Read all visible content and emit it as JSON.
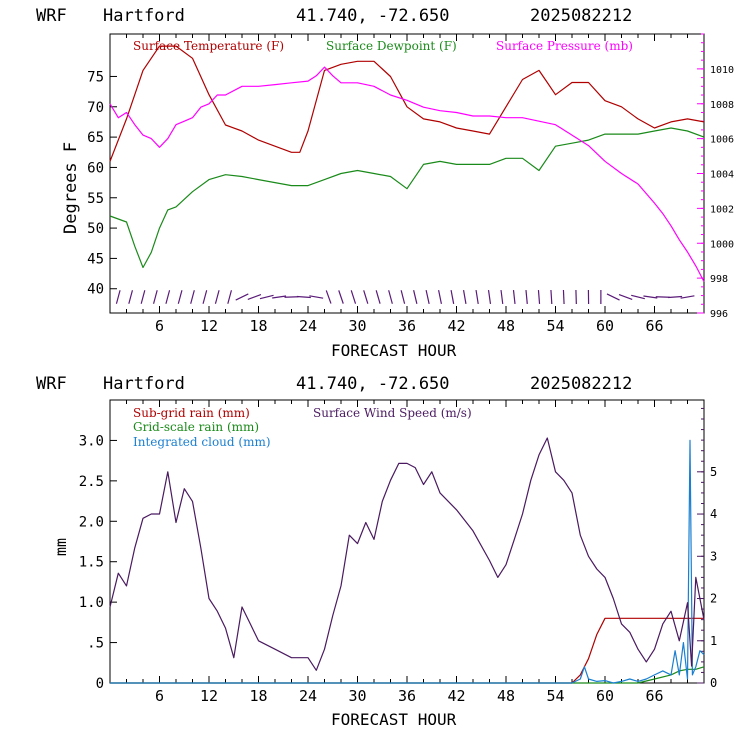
{
  "colors": {
    "frame": "#000000",
    "temperature": "#b00000",
    "dewpoint": "#1a8a1a",
    "pressure": "#ff00ff",
    "wind_barbs": "#5a1a78",
    "subgrid_rain": "#b00000",
    "gridscale_rain": "#1a8a1a",
    "cloud": "#1a7fd0",
    "wind_speed": "#4a1a60"
  },
  "chart_data": [
    {
      "type": "line",
      "title_row": {
        "model": "WRF",
        "location": "Hartford",
        "coords": "41.740, -72.650",
        "run": "2025082212"
      },
      "xlabel": "FORECAST HOUR",
      "ylabel": "Degrees F",
      "xlim": [
        0,
        72
      ],
      "ylim": [
        36,
        82
      ],
      "y2lim": [
        996,
        1012
      ],
      "x_ticks": [
        6,
        12,
        18,
        24,
        30,
        36,
        42,
        48,
        54,
        60,
        66
      ],
      "x_tick_labels": [
        "6",
        "12",
        "18",
        "24",
        "30",
        "36",
        "42",
        "48",
        "54",
        "60",
        "66"
      ],
      "y_ticks": [
        40,
        45,
        50,
        55,
        60,
        65,
        70,
        75
      ],
      "y_tick_labels": [
        "40",
        "45",
        "50",
        "55",
        "60",
        "65",
        "70",
        "75"
      ],
      "y2_ticks": [
        996,
        998,
        1000,
        1002,
        1004,
        1006,
        1008,
        1010
      ],
      "y2_tick_labels": [
        "996",
        "998",
        "1000",
        "1002",
        "1004",
        "1006",
        "1008",
        "1010"
      ],
      "legend_placement": "top",
      "series": [
        {
          "name": "Surface Temperature (F)",
          "axis": "left",
          "x": [
            0,
            2,
            4,
            6,
            8,
            10,
            12,
            14,
            16,
            18,
            20,
            22,
            23,
            24,
            26,
            28,
            30,
            32,
            34,
            36,
            38,
            40,
            42,
            44,
            46,
            48,
            50,
            52,
            53,
            54,
            56,
            58,
            60,
            62,
            64,
            66,
            68,
            70,
            72
          ],
          "y": [
            61,
            68,
            76,
            80,
            80,
            78,
            72,
            67,
            66,
            64.5,
            63.5,
            62.5,
            62.5,
            66,
            76,
            77,
            77.5,
            77.5,
            75,
            70,
            68,
            67.5,
            66.5,
            66,
            65.5,
            70,
            74.5,
            76,
            74,
            72,
            74,
            74,
            71,
            70,
            68,
            66.5,
            67.5,
            68,
            67.5
          ]
        },
        {
          "name": "Surface Dewpoint (F)",
          "axis": "left",
          "x": [
            0,
            2,
            3,
            4,
            5,
            6,
            7,
            8,
            10,
            12,
            14,
            16,
            18,
            20,
            22,
            24,
            26,
            28,
            30,
            32,
            34,
            36,
            38,
            40,
            42,
            44,
            46,
            48,
            50,
            52,
            54,
            56,
            58,
            60,
            62,
            64,
            66,
            68,
            70,
            72
          ],
          "y": [
            52,
            51,
            47,
            43.5,
            46,
            50,
            53,
            53.5,
            56,
            58,
            58.8,
            58.5,
            58,
            57.5,
            57,
            57,
            58,
            59,
            59.5,
            59,
            58.5,
            56.5,
            60.5,
            61,
            60.5,
            60.5,
            60.5,
            61.5,
            61.5,
            59.5,
            63.5,
            64,
            64.5,
            65.5,
            65.5,
            65.5,
            66,
            66.5,
            66,
            65
          ]
        },
        {
          "name": "Surface Pressure (mb)",
          "axis": "right",
          "x": [
            0,
            1,
            2,
            3,
            4,
            5,
            6,
            7,
            8,
            9,
            10,
            11,
            12,
            13,
            14,
            16,
            18,
            20,
            22,
            24,
            25,
            26,
            27,
            28,
            30,
            32,
            34,
            36,
            38,
            40,
            42,
            44,
            46,
            48,
            50,
            52,
            54,
            56,
            58,
            60,
            62,
            64,
            66,
            67,
            68,
            69,
            70,
            71,
            72
          ],
          "y": [
            1008,
            1007.2,
            1007.5,
            1006.8,
            1006.2,
            1006,
            1005.5,
            1006,
            1006.8,
            1007,
            1007.2,
            1007.8,
            1008,
            1008.5,
            1008.5,
            1009,
            1009,
            1009.1,
            1009.2,
            1009.3,
            1009.6,
            1010.1,
            1009.6,
            1009.2,
            1009.2,
            1009,
            1008.5,
            1008.2,
            1007.8,
            1007.6,
            1007.5,
            1007.3,
            1007.3,
            1007.2,
            1007.2,
            1007,
            1006.8,
            1006.2,
            1005.6,
            1004.7,
            1004,
            1003.4,
            1002.3,
            1001.7,
            1001,
            1000.2,
            999.5,
            998.7,
            997.8
          ]
        }
      ],
      "wind_barbs_note": "wind barbs drawn along bottom of panel"
    },
    {
      "type": "line",
      "title_row": {
        "model": "WRF",
        "location": "Hartford",
        "coords": "41.740, -72.650",
        "run": "2025082212"
      },
      "xlabel": "FORECAST HOUR",
      "ylabel": "mm",
      "xlim": [
        0,
        72
      ],
      "ylim": [
        0,
        3.5
      ],
      "y2lim": [
        0,
        6.7
      ],
      "x_ticks": [
        6,
        12,
        18,
        24,
        30,
        36,
        42,
        48,
        54,
        60,
        66
      ],
      "x_tick_labels": [
        "6",
        "12",
        "18",
        "24",
        "30",
        "36",
        "42",
        "48",
        "54",
        "60",
        "66"
      ],
      "y_ticks": [
        0,
        0.5,
        1.0,
        1.5,
        2.0,
        2.5,
        3.0
      ],
      "y_tick_labels": [
        "0",
        ".5",
        "1.0",
        "1.5",
        "2.0",
        "2.5",
        "3.0"
      ],
      "y2_ticks": [
        0,
        1,
        2,
        3,
        4,
        5
      ],
      "y2_tick_labels": [
        "0",
        "1",
        "2",
        "3",
        "4",
        "5"
      ],
      "legend_placement": "top-left",
      "series": [
        {
          "name": "Sub-grid rain (mm)",
          "axis": "left",
          "x": [
            0,
            56,
            57,
            58,
            59,
            60,
            62,
            66,
            70,
            72
          ],
          "y": [
            0,
            0,
            0.1,
            0.3,
            0.6,
            0.8,
            0.8,
            0.8,
            0.8,
            0.8
          ]
        },
        {
          "name": "Grid-scale rain (mm)",
          "axis": "left",
          "x": [
            0,
            64,
            66,
            68,
            69,
            70,
            71,
            72
          ],
          "y": [
            0,
            0,
            0.05,
            0.1,
            0.15,
            0.17,
            0.17,
            0.2
          ]
        },
        {
          "name": "Integrated cloud (mm)",
          "axis": "left",
          "x": [
            0,
            56,
            57,
            57.5,
            58,
            59,
            60,
            61,
            62,
            63,
            64,
            65,
            66,
            67,
            68,
            68.5,
            69,
            69.5,
            70,
            70.3,
            70.6,
            71,
            71.5,
            72
          ],
          "y": [
            0,
            0,
            0.05,
            0.2,
            0.05,
            0.02,
            0.03,
            0,
            0.02,
            0.05,
            0.02,
            0.05,
            0.1,
            0.15,
            0.1,
            0.4,
            0.1,
            0.5,
            0.05,
            3.0,
            0.1,
            0.2,
            0.4,
            0.35
          ]
        },
        {
          "name": "Surface Wind Speed (m/s)",
          "axis": "right",
          "x": [
            0,
            1,
            2,
            3,
            4,
            5,
            6,
            7,
            8,
            9,
            10,
            11,
            12,
            13,
            14,
            15,
            16,
            17,
            18,
            20,
            22,
            24,
            25,
            26,
            27,
            28,
            29,
            30,
            31,
            32,
            33,
            34,
            35,
            36,
            37,
            38,
            39,
            40,
            42,
            44,
            46,
            47,
            48,
            49,
            50,
            51,
            52,
            53,
            54,
            55,
            56,
            57,
            58,
            59,
            60,
            61,
            62,
            63,
            64,
            65,
            66,
            67,
            68,
            69,
            70,
            70.5,
            71,
            72
          ],
          "y": [
            1.8,
            2.6,
            2.3,
            3.2,
            3.9,
            4.0,
            4.0,
            5.0,
            3.8,
            4.6,
            4.3,
            3.2,
            2.0,
            1.7,
            1.3,
            0.6,
            1.8,
            1.4,
            1.0,
            0.8,
            0.6,
            0.6,
            0.3,
            0.8,
            1.6,
            2.3,
            3.5,
            3.3,
            3.8,
            3.4,
            4.3,
            4.8,
            5.2,
            5.2,
            5.1,
            4.7,
            5.0,
            4.5,
            4.1,
            3.6,
            2.9,
            2.5,
            2.8,
            3.4,
            4.0,
            4.8,
            5.4,
            5.8,
            5.0,
            4.8,
            4.5,
            3.5,
            3.0,
            2.7,
            2.5,
            2.0,
            1.4,
            1.2,
            0.8,
            0.5,
            0.8,
            1.4,
            1.7,
            1.0,
            1.9,
            0.4,
            2.5,
            1.5
          ]
        }
      ]
    }
  ]
}
